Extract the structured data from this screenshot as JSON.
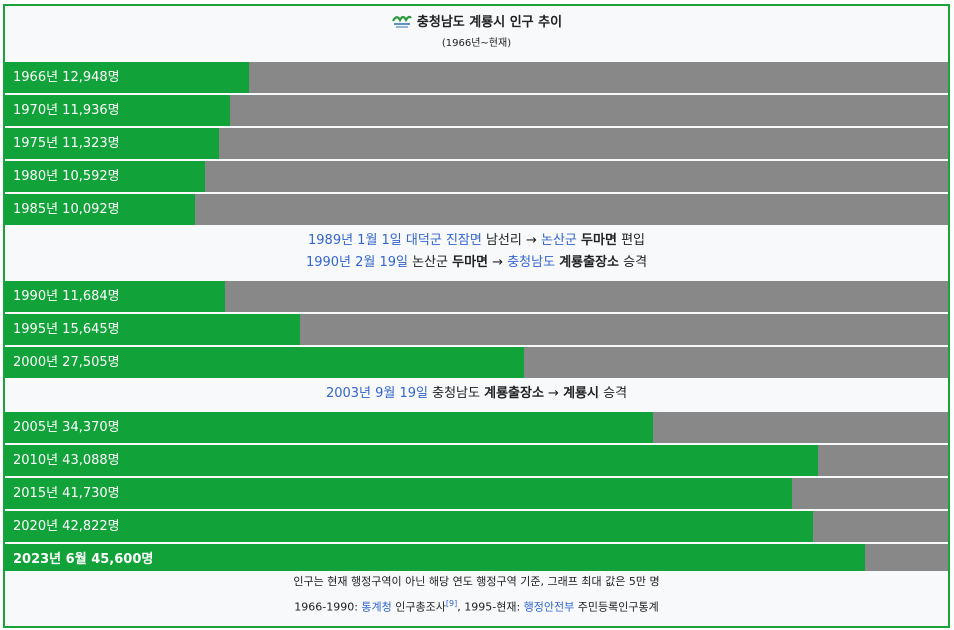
{
  "title": "충청남도 계룡시 인구 추이",
  "subtitle": "(1966년~현재)",
  "colors": {
    "bar": "#12a23a",
    "track": "#888888",
    "border": "#1aa33a",
    "link": "#3366cc"
  },
  "chart_data": {
    "type": "bar",
    "orientation": "horizontal",
    "title": "충청남도 계룡시 인구 추이",
    "subtitle": "(1966년~현재)",
    "xlim": [
      0,
      50000
    ],
    "unit": "명",
    "categories": [
      "1966년",
      "1970년",
      "1975년",
      "1980년",
      "1985년",
      "1990년",
      "1995년",
      "2000년",
      "2005년",
      "2010년",
      "2015년",
      "2020년",
      "2023년 6월"
    ],
    "values": [
      12948,
      11936,
      11323,
      10592,
      10092,
      11684,
      15645,
      27505,
      34370,
      43088,
      41730,
      42822,
      45600
    ],
    "labels": [
      "1966년 12,948명",
      "1970년 11,936명",
      "1975년 11,323명",
      "1980년 10,592명",
      "1985년 10,092명",
      "1990년 11,684명",
      "1995년 15,645명",
      "2000년 27,505명",
      "2005년 34,370명",
      "2010년 43,088명",
      "2015년 41,730명",
      "2020년 42,822명",
      "2023년 6월 45,600명"
    ]
  },
  "notes": [
    {
      "lines": [
        [
          {
            "t": "1989년 1월 1일",
            "link": true
          },
          {
            "t": " "
          },
          {
            "t": "대덕군",
            "link": true
          },
          {
            "t": " "
          },
          {
            "t": "진잠면",
            "link": true
          },
          {
            "t": " 남선리 → "
          },
          {
            "t": "논산군",
            "link": true
          },
          {
            "t": " "
          },
          {
            "t": "두마면",
            "bold": true
          },
          {
            "t": " 편입"
          }
        ],
        [
          {
            "t": "1990년 2월 19일",
            "link": true
          },
          {
            "t": " 논산군 "
          },
          {
            "t": "두마면",
            "bold": true
          },
          {
            "t": " → "
          },
          {
            "t": "충청남도",
            "link": true
          },
          {
            "t": " "
          },
          {
            "t": "계룡출장소",
            "bold": true
          },
          {
            "t": " 승격"
          }
        ]
      ]
    },
    {
      "lines": [
        [
          {
            "t": "2003년 9월 19일",
            "link": true
          },
          {
            "t": " 충청남도 "
          },
          {
            "t": "계룡출장소",
            "bold": true
          },
          {
            "t": " → "
          },
          {
            "t": "계룡시",
            "bold": true
          },
          {
            "t": " 승격"
          }
        ]
      ]
    }
  ],
  "footer": {
    "line1": "인구는 현재 행정구역이 아닌 해당 연도 행정구역 기준, 그래프 최대 값은 5만 명",
    "line2": [
      {
        "t": "1966-1990: "
      },
      {
        "t": "통계청",
        "link": true
      },
      {
        "t": " 인구총조사"
      },
      {
        "t": "[9]",
        "sup": true,
        "link": true
      },
      {
        "t": ", 1995-현재: "
      },
      {
        "t": "행정안전부",
        "link": true
      },
      {
        "t": " 주민등록인구통계"
      }
    ]
  }
}
